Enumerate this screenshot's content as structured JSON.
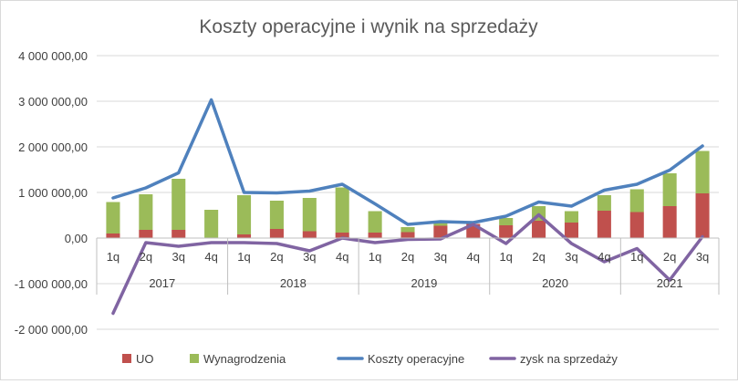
{
  "chart_data": {
    "type": "bar",
    "title": "Koszty operacyjne i wynik na sprzedaży",
    "xlabel": "",
    "ylabel": "",
    "ylim": [
      -2000000,
      4000000
    ],
    "yticks": [
      -2000000,
      -1000000,
      0,
      1000000,
      2000000,
      3000000,
      4000000
    ],
    "ytick_labels": [
      "-2 000 000,00",
      "-1 000 000,00",
      "0,00",
      "1 000 000,00",
      "2 000 000,00",
      "3 000 000,00",
      "4 000 000,00"
    ],
    "grid": true,
    "legend": "bottom",
    "categories": [
      "1q",
      "2q",
      "3q",
      "4q",
      "1q",
      "2q",
      "3q",
      "4q",
      "1q",
      "2q",
      "3q",
      "4q",
      "1q",
      "2q",
      "3q",
      "4q",
      "1q",
      "2q",
      "3q"
    ],
    "groups": [
      {
        "label": "2017",
        "count": 4
      },
      {
        "label": "2018",
        "count": 4
      },
      {
        "label": "2019",
        "count": 4
      },
      {
        "label": "2020",
        "count": 4
      },
      {
        "label": "2021",
        "count": 3
      }
    ],
    "series": [
      {
        "name": "UO",
        "kind": "stacked-bar",
        "color": "#c0504d",
        "values": [
          100000,
          180000,
          180000,
          0,
          80000,
          200000,
          150000,
          120000,
          120000,
          130000,
          270000,
          310000,
          280000,
          380000,
          340000,
          600000,
          570000,
          700000,
          980000
        ]
      },
      {
        "name": "Wynagrodzenia",
        "kind": "stacked-bar",
        "color": "#9bbb59",
        "values": [
          690000,
          780000,
          1120000,
          620000,
          860000,
          620000,
          730000,
          990000,
          470000,
          110000,
          70000,
          0,
          160000,
          320000,
          250000,
          340000,
          500000,
          720000,
          930000
        ]
      },
      {
        "name": "Koszty operacyjne",
        "kind": "line",
        "color": "#4f81bd",
        "values": [
          880000,
          1100000,
          1430000,
          3030000,
          1000000,
          990000,
          1030000,
          1180000,
          750000,
          300000,
          360000,
          340000,
          480000,
          790000,
          700000,
          1050000,
          1180000,
          1490000,
          2020000
        ]
      },
      {
        "name": "zysk na sprzedaży",
        "kind": "line",
        "color": "#8064a2",
        "values": [
          -1650000,
          -100000,
          -180000,
          -100000,
          -100000,
          -120000,
          -280000,
          0,
          -100000,
          -30000,
          -20000,
          300000,
          -120000,
          510000,
          -120000,
          -520000,
          -230000,
          -920000,
          30000
        ]
      }
    ]
  }
}
